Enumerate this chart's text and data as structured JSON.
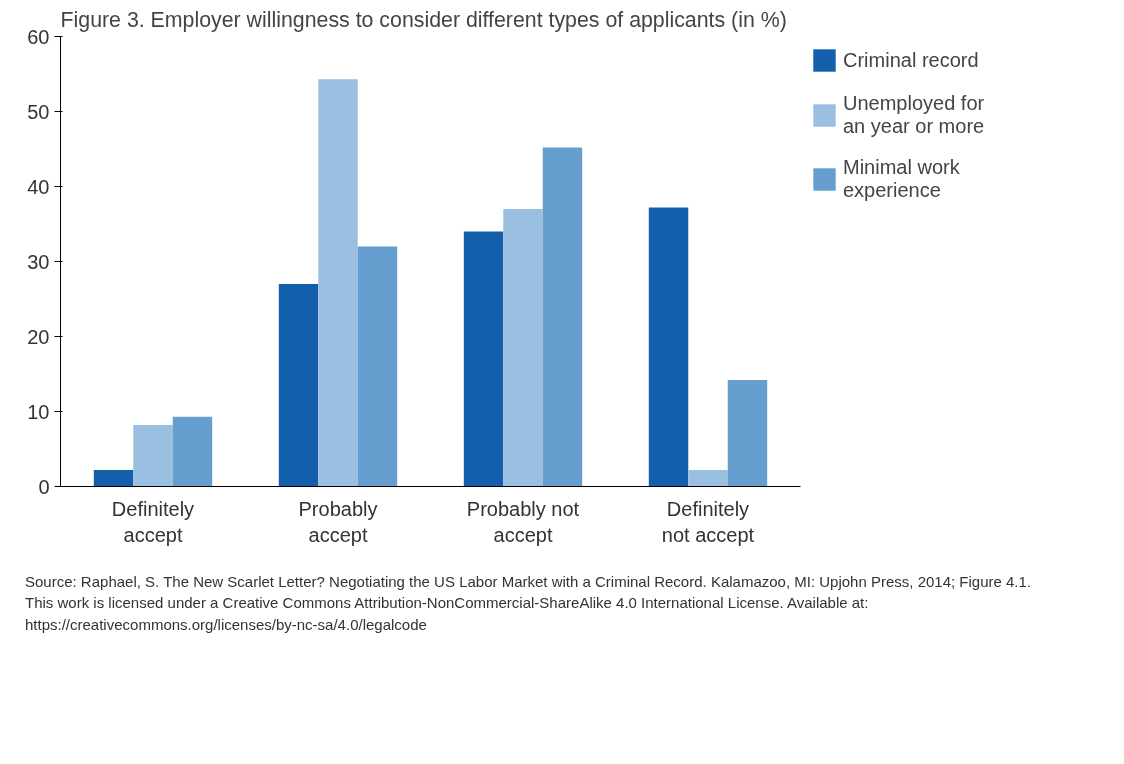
{
  "chart_data": {
    "type": "bar",
    "title": "Figure 3. Employer willingness to consider different types of applicants (in %)",
    "categories": [
      "Definitely accept",
      "Probably accept",
      "Probably not accept",
      "Definitely not accept"
    ],
    "series": [
      {
        "name": "Criminal record",
        "color": "#135fac",
        "values": [
          2.2,
          27,
          34,
          37.2
        ]
      },
      {
        "name": "Unemployed for an year or more",
        "color": "#9bbfe0",
        "values": [
          8.2,
          54.3,
          37,
          2.2
        ]
      },
      {
        "name": "Minimal work experience",
        "color": "#659ecf",
        "values": [
          9.3,
          32,
          45.2,
          14.2
        ]
      }
    ],
    "ylim": [
      0,
      60
    ],
    "yticks": [
      0,
      10,
      20,
      30,
      40,
      50,
      60
    ],
    "grid": false,
    "legend": "top right",
    "annotations": [
      "Source: Raphael, S. The New Scarlet Letter? Negotiating the US Labor Market with a Criminal Record. Kalamazoo, MI: Upjohn Press, 2014; Figure 4.1. This work is licensed under a Creative Commons Attribution-NonCommercial-ShareAlike 4.0 International License. Available at: https://creativecommons.org/licenses/by-nc-sa/4.0/legalcode"
    ]
  }
}
